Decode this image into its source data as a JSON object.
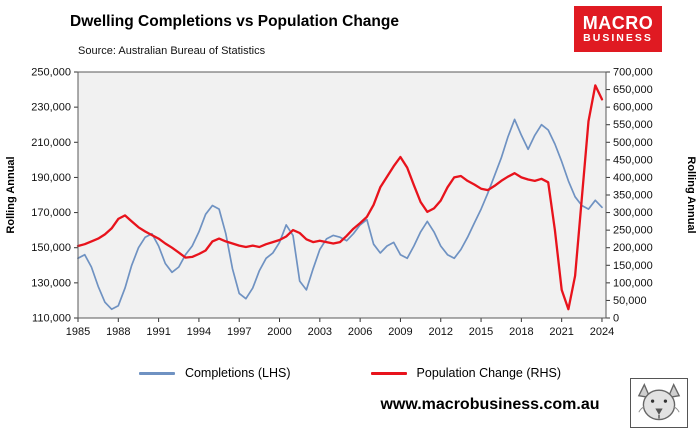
{
  "header": {
    "title": "Dwelling Completions vs Population Change",
    "source": "Source: Australian Bureau of Statistics"
  },
  "logo": {
    "line1": "MACRO",
    "line2": "BUSINESS",
    "color": "#e01a22"
  },
  "footer": {
    "website": "www.macrobusiness.com.au"
  },
  "chart_data": {
    "type": "line",
    "title": "Dwelling Completions vs Population Change",
    "source": "Source: Australian Bureau of Statistics",
    "ylabel_left": "Rolling Annual",
    "ylabel_right": "Rolling Annual",
    "plot_bg": "#f1f1f1",
    "border_color": "#595959",
    "grid": false,
    "legend_position": "bottom",
    "x_start": 1985,
    "x_step": 0.5,
    "x_range": [
      1985,
      2024.3
    ],
    "ylim_left": [
      110000,
      250000
    ],
    "ylim_right": [
      0,
      700000
    ],
    "yticks_left": [
      250000,
      230000,
      210000,
      190000,
      170000,
      150000,
      130000,
      110000
    ],
    "yticks_right": [
      700000,
      650000,
      600000,
      550000,
      500000,
      450000,
      400000,
      350000,
      300000,
      250000,
      200000,
      150000,
      100000,
      50000,
      0
    ],
    "xticks": [
      1985,
      1988,
      1991,
      1994,
      1997,
      2000,
      2003,
      2006,
      2009,
      2012,
      2015,
      2018,
      2021,
      2024
    ],
    "series": [
      {
        "name": "Completions",
        "label": "Completions (LHS)",
        "axis": "left",
        "color": "#6f92c2",
        "width": 1.7,
        "values": [
          144000,
          146000,
          139000,
          128000,
          119000,
          115000,
          117000,
          127000,
          140000,
          150000,
          156000,
          158000,
          151000,
          141000,
          136000,
          139000,
          146000,
          151000,
          159000,
          169000,
          174000,
          172000,
          158000,
          138000,
          124000,
          121000,
          127000,
          137000,
          144000,
          147000,
          153000,
          163000,
          157000,
          131000,
          126000,
          138000,
          149000,
          155000,
          157000,
          156000,
          154000,
          158000,
          163000,
          166000,
          152000,
          147000,
          151000,
          153000,
          146000,
          144000,
          151000,
          159000,
          165000,
          159000,
          151000,
          146000,
          144000,
          149000,
          156000,
          164000,
          172000,
          181000,
          191000,
          201000,
          213000,
          223000,
          214000,
          206000,
          214000,
          220000,
          217000,
          209000,
          199000,
          188000,
          179000,
          174000,
          172000,
          177000,
          173000
        ]
      },
      {
        "name": "Population Change",
        "label": "Population Change (RHS)",
        "axis": "right",
        "color": "#e8131c",
        "width": 2.3,
        "values": [
          205000,
          210000,
          218000,
          226000,
          238000,
          255000,
          282000,
          292000,
          275000,
          258000,
          246000,
          236000,
          226000,
          212000,
          200000,
          186000,
          172000,
          174000,
          182000,
          192000,
          218000,
          226000,
          218000,
          212000,
          206000,
          202000,
          206000,
          202000,
          210000,
          216000,
          222000,
          232000,
          250000,
          242000,
          224000,
          216000,
          220000,
          216000,
          212000,
          216000,
          234000,
          254000,
          270000,
          288000,
          322000,
          372000,
          402000,
          432000,
          458000,
          428000,
          378000,
          330000,
          302000,
          312000,
          334000,
          372000,
          400000,
          404000,
          390000,
          380000,
          368000,
          364000,
          376000,
          390000,
          402000,
          412000,
          400000,
          394000,
          390000,
          396000,
          386000,
          250000,
          80000,
          25000,
          120000,
          340000,
          560000,
          662000,
          622000
        ]
      }
    ]
  }
}
